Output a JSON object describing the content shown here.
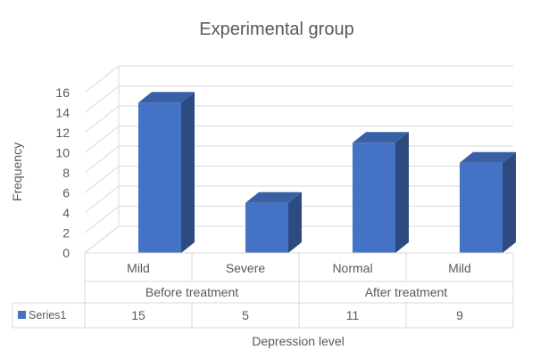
{
  "chart_data": {
    "type": "bar",
    "title": "Experimental group",
    "ylabel": "Frequency",
    "xlabel": "Depression level",
    "ylim": [
      0,
      16
    ],
    "yticks": [
      0,
      2,
      4,
      6,
      8,
      10,
      12,
      14,
      16
    ],
    "categories": [
      "Mild",
      "Severe",
      "Normal",
      "Mild"
    ],
    "groups": [
      {
        "label": "Before treatment",
        "span": 2
      },
      {
        "label": "After treatment",
        "span": 2
      }
    ],
    "series": [
      {
        "name": "Series1",
        "values": [
          15,
          5,
          11,
          9
        ],
        "color": "#4472c4"
      }
    ],
    "data_table": true,
    "legend": "data-table-key",
    "style": "3d-column",
    "grid": true
  }
}
